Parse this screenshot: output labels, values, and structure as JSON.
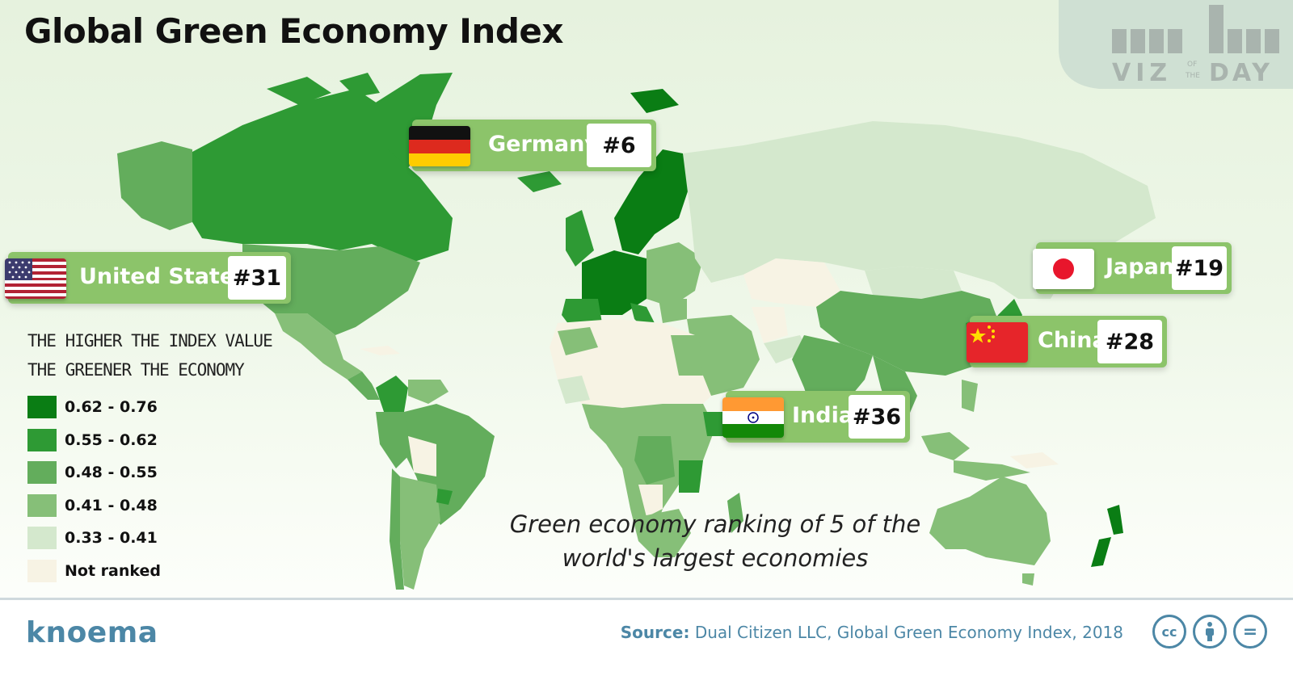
{
  "title": "Global Green Economy Index",
  "brand_badge": {
    "part1": "VIZ",
    "part2_small_top": "OF",
    "part2_small_bottom": "THE",
    "part3": "DAY"
  },
  "colors": {
    "c1": "#0a7d14",
    "c2": "#2e9a34",
    "c3": "#63ad5c",
    "c4": "#86bf78",
    "c5": "#d4e8cd",
    "not_ranked": "#f7f3e4",
    "callout": "#8cc46a",
    "footer_text": "#4c87a6"
  },
  "legend": {
    "title_line1": "THE HIGHER THE INDEX VALUE",
    "title_line2": "THE GREENER THE ECONOMY",
    "items": [
      {
        "label": "0.62 - 0.76",
        "color": "#0a7d14"
      },
      {
        "label": "0.55 - 0.62",
        "color": "#2e9a34"
      },
      {
        "label": "0.48 - 0.55",
        "color": "#63ad5c"
      },
      {
        "label": "0.41 - 0.48",
        "color": "#86bf78"
      },
      {
        "label": "0.33 - 0.41",
        "color": "#d4e8cd"
      },
      {
        "label": "Not ranked",
        "color": "#f7f3e4"
      }
    ]
  },
  "callouts": [
    {
      "country": "Germany",
      "rank": "#6",
      "flag": "germany-flag"
    },
    {
      "country": "United States",
      "rank": "#31",
      "flag": "usa-flag"
    },
    {
      "country": "Japan",
      "rank": "#19",
      "flag": "japan-flag"
    },
    {
      "country": "China",
      "rank": "#28",
      "flag": "china-flag"
    },
    {
      "country": "India",
      "rank": "#36",
      "flag": "india-flag"
    }
  ],
  "subtitle_line1": "Green economy ranking of 5 of the",
  "subtitle_line2": "world's largest economies",
  "footer": {
    "logo": "knoema",
    "source_label": "Source:",
    "source_text": "Dual Citizen LLC, Global Green Economy Index, 2018",
    "license_icons": [
      "cc-icon",
      "attribution-icon",
      "no-derivatives-icon"
    ],
    "cc_text": "cc",
    "nd_text": "="
  }
}
